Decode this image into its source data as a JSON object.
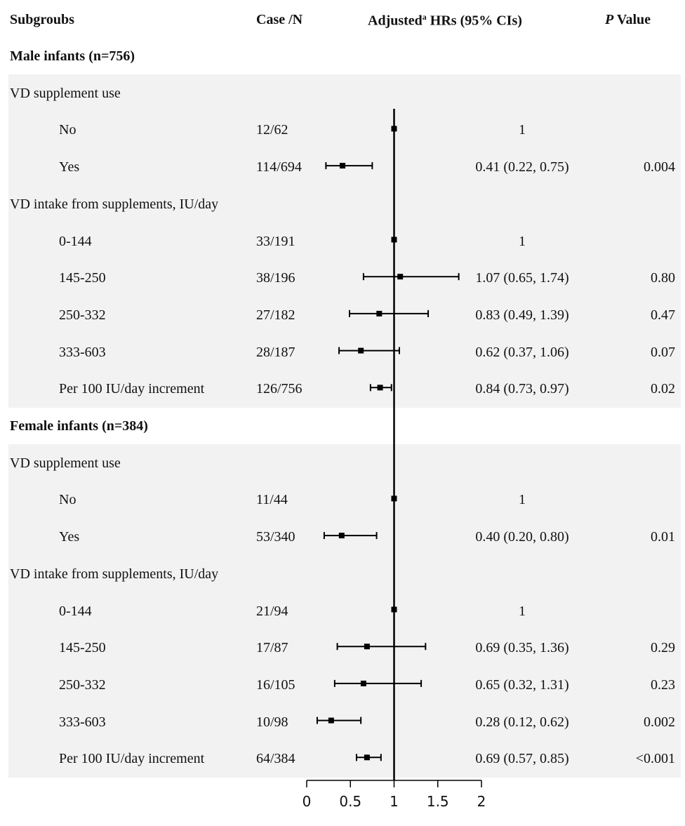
{
  "header": {
    "subgroups": "Subgroubs",
    "case_n": "Case /N",
    "hr_pre": "Adjusted",
    "hr_sup": "a",
    "hr_post": " HRs (95% CIs)",
    "p_italic": "P",
    "p_rest": " Value"
  },
  "rows": [
    {
      "kind": "group",
      "label": "Male infants (n=756)",
      "shaded": false
    },
    {
      "kind": "sub",
      "label": "VD supplement use",
      "shaded": true
    },
    {
      "kind": "item",
      "label": "No",
      "case": "12/62",
      "hr_text": "1",
      "p": "",
      "shaded": true
    },
    {
      "kind": "item",
      "label": "Yes",
      "case": "114/694",
      "hr_text": "0.41 (0.22, 0.75)",
      "p": "0.004",
      "shaded": true
    },
    {
      "kind": "sub",
      "label": "VD intake from supplements, IU/day",
      "shaded": true
    },
    {
      "kind": "item",
      "label": "0-144",
      "case": "33/191",
      "hr_text": "1",
      "p": "",
      "shaded": true
    },
    {
      "kind": "item",
      "label": "145-250",
      "case": "38/196",
      "hr_text": "1.07 (0.65, 1.74)",
      "p": "0.80",
      "shaded": true
    },
    {
      "kind": "item",
      "label": "250-332",
      "case": "27/182",
      "hr_text": "0.83 (0.49, 1.39)",
      "p": "0.47",
      "shaded": true
    },
    {
      "kind": "item",
      "label": "333-603",
      "case": "28/187",
      "hr_text": "0.62 (0.37, 1.06)",
      "p": "0.07",
      "shaded": true
    },
    {
      "kind": "item",
      "label": "Per 100 IU/day increment",
      "case": "126/756",
      "hr_text": "0.84 (0.73, 0.97)",
      "p": "0.02",
      "shaded": true
    },
    {
      "kind": "group",
      "label": "Female infants (n=384)",
      "shaded": false
    },
    {
      "kind": "sub",
      "label": "VD supplement use",
      "shaded": true
    },
    {
      "kind": "item",
      "label": "No",
      "case": "11/44",
      "hr_text": "1",
      "p": "",
      "shaded": true
    },
    {
      "kind": "item",
      "label": "Yes",
      "case": "53/340",
      "hr_text": "0.40 (0.20, 0.80)",
      "p": "0.01",
      "shaded": true
    },
    {
      "kind": "sub",
      "label": "VD intake from supplements, IU/day",
      "shaded": true
    },
    {
      "kind": "item",
      "label": "0-144",
      "case": "21/94",
      "hr_text": "1",
      "p": "",
      "shaded": true
    },
    {
      "kind": "item",
      "label": "145-250",
      "case": "17/87",
      "hr_text": "0.69 (0.35, 1.36)",
      "p": "0.29",
      "shaded": true
    },
    {
      "kind": "item",
      "label": "250-332",
      "case": "16/105",
      "hr_text": "0.65 (0.32, 1.31)",
      "p": "0.23",
      "shaded": true
    },
    {
      "kind": "item",
      "label": "333-603",
      "case": "10/98",
      "hr_text": "0.28 (0.12, 0.62)",
      "p": "0.002",
      "shaded": true
    },
    {
      "kind": "item",
      "label": "Per 100 IU/day increment",
      "case": "64/384",
      "hr_text": "0.69 (0.57, 0.85)",
      "p": "<0.001",
      "shaded": true
    }
  ],
  "chart_data": {
    "type": "forest",
    "reference_line": 1,
    "xlim": [
      0,
      2
    ],
    "xticks": [
      0,
      0.5,
      1,
      1.5,
      2
    ],
    "xtick_labels": [
      "0",
      "0.5",
      "1",
      "1.5",
      "2"
    ],
    "points": [
      {
        "row": 2,
        "est": 1,
        "lo": null,
        "hi": null
      },
      {
        "row": 3,
        "est": 0.41,
        "lo": 0.22,
        "hi": 0.75
      },
      {
        "row": 5,
        "est": 1,
        "lo": null,
        "hi": null
      },
      {
        "row": 6,
        "est": 1.07,
        "lo": 0.65,
        "hi": 1.74
      },
      {
        "row": 7,
        "est": 0.83,
        "lo": 0.49,
        "hi": 1.39
      },
      {
        "row": 8,
        "est": 0.62,
        "lo": 0.37,
        "hi": 1.06
      },
      {
        "row": 9,
        "est": 0.84,
        "lo": 0.73,
        "hi": 0.97
      },
      {
        "row": 12,
        "est": 1,
        "lo": null,
        "hi": null
      },
      {
        "row": 13,
        "est": 0.4,
        "lo": 0.2,
        "hi": 0.8
      },
      {
        "row": 15,
        "est": 1,
        "lo": null,
        "hi": null
      },
      {
        "row": 16,
        "est": 0.69,
        "lo": 0.35,
        "hi": 1.36
      },
      {
        "row": 17,
        "est": 0.65,
        "lo": 0.32,
        "hi": 1.31
      },
      {
        "row": 18,
        "est": 0.28,
        "lo": 0.12,
        "hi": 0.62
      },
      {
        "row": 19,
        "est": 0.69,
        "lo": 0.57,
        "hi": 0.85
      }
    ]
  }
}
